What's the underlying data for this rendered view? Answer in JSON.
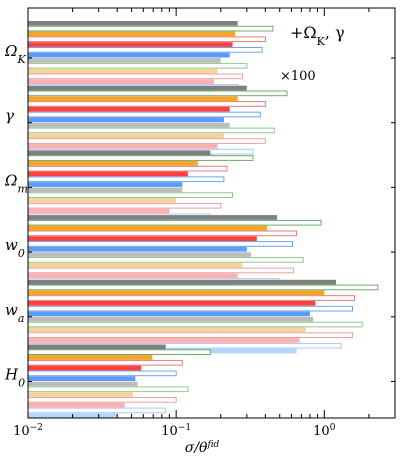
{
  "chart_data": {
    "type": "bar",
    "orientation": "horizontal",
    "xscale": "log",
    "xlim": [
      0.01,
      3.0
    ],
    "xlabel": "σ/θ^fid",
    "xtick_labels": [
      "10^-2",
      "10^-1",
      "10^0"
    ],
    "xtick_values": [
      0.01,
      0.1,
      1.0
    ],
    "annotation": "+Ω_K, γ",
    "group_annotation": "×100",
    "grid": false,
    "series_styles": [
      {
        "fill": "#7f7f7f",
        "filled": true
      },
      {
        "fill": "#ffffff",
        "stroke": "#6fa86f",
        "filled": false
      },
      {
        "fill": "#f5a623",
        "filled": true
      },
      {
        "fill": "#ffffff",
        "stroke": "#e07c7c",
        "filled": false
      },
      {
        "fill": "#ff4040",
        "filled": true
      },
      {
        "fill": "#ffffff",
        "stroke": "#6da4e8",
        "filled": false
      },
      {
        "fill": "#5b9bff",
        "filled": true
      },
      {
        "fill": "#bcbcbc",
        "filled": true
      },
      {
        "fill": "#ffffff",
        "stroke": "#8fc98f",
        "filled": false
      },
      {
        "fill": "#f5d49a",
        "filled": true
      },
      {
        "fill": "#ffffff",
        "stroke": "#e8a0a0",
        "filled": false
      },
      {
        "fill": "#ffb0b0",
        "filled": true
      },
      {
        "fill": "#ffffff",
        "stroke": "#a8c8f0",
        "filled": false
      },
      {
        "fill": "#b7d3ff",
        "filled": true
      }
    ],
    "groups": [
      {
        "label": "Ω_K",
        "values": [
          0.26,
          0.45,
          0.25,
          0.4,
          0.24,
          0.38,
          0.23,
          0.2,
          0.3,
          0.19,
          0.28,
          0.18,
          0.26,
          0.18
        ]
      },
      {
        "label": "γ",
        "values": [
          0.3,
          0.56,
          0.26,
          0.4,
          0.23,
          0.37,
          0.21,
          0.23,
          0.46,
          0.21,
          0.4,
          0.19,
          0.33,
          0.18
        ]
      },
      {
        "label": "Ω_m",
        "values": [
          0.17,
          0.33,
          0.14,
          0.22,
          0.12,
          0.21,
          0.11,
          0.11,
          0.24,
          0.1,
          0.2,
          0.09,
          0.17,
          0.085
        ]
      },
      {
        "label": "w_0",
        "values": [
          0.48,
          0.95,
          0.41,
          0.65,
          0.35,
          0.61,
          0.3,
          0.32,
          0.72,
          0.28,
          0.62,
          0.26,
          0.5,
          0.25
        ]
      },
      {
        "label": "w_a",
        "values": [
          1.2,
          2.3,
          1.0,
          1.6,
          0.87,
          1.55,
          0.8,
          0.84,
          1.8,
          0.75,
          1.55,
          0.68,
          1.3,
          0.65
        ]
      },
      {
        "label": "H_0",
        "values": [
          0.085,
          0.17,
          0.069,
          0.11,
          0.058,
          0.1,
          0.053,
          0.055,
          0.12,
          0.051,
          0.1,
          0.045,
          0.085,
          0.04
        ]
      }
    ]
  }
}
